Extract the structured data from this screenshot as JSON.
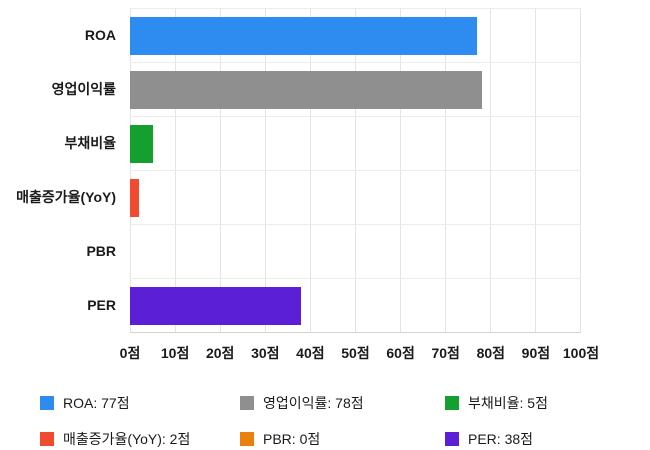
{
  "chart_data": {
    "type": "bar",
    "orientation": "horizontal",
    "title": "",
    "xlabel": "",
    "ylabel": "",
    "unit": "점",
    "xlim": [
      0,
      100
    ],
    "grid": true,
    "categories": [
      "ROA",
      "영업이익률",
      "부채비율",
      "매출증가율(YoY)",
      "PBR",
      "PER"
    ],
    "values": [
      77,
      78,
      5,
      2,
      0,
      38
    ],
    "colors": [
      "#2e8cf0",
      "#8f8f8f",
      "#14a02e",
      "#f04b2e",
      "#e8820c",
      "#5b20d6"
    ],
    "x_ticks": [
      "0점",
      "10점",
      "20점",
      "30점",
      "40점",
      "50점",
      "60점",
      "70점",
      "80점",
      "90점",
      "100점"
    ],
    "legend_position": "bottom",
    "legend": [
      {
        "label": "ROA: 77점",
        "color": "#2e8cf0"
      },
      {
        "label": "영업이익률: 78점",
        "color": "#8f8f8f"
      },
      {
        "label": "부채비율: 5점",
        "color": "#14a02e"
      },
      {
        "label": "매출증가율(YoY): 2점",
        "color": "#f04b2e"
      },
      {
        "label": "PBR: 0점",
        "color": "#e8820c"
      },
      {
        "label": "PER: 38점",
        "color": "#5b20d6"
      }
    ]
  }
}
